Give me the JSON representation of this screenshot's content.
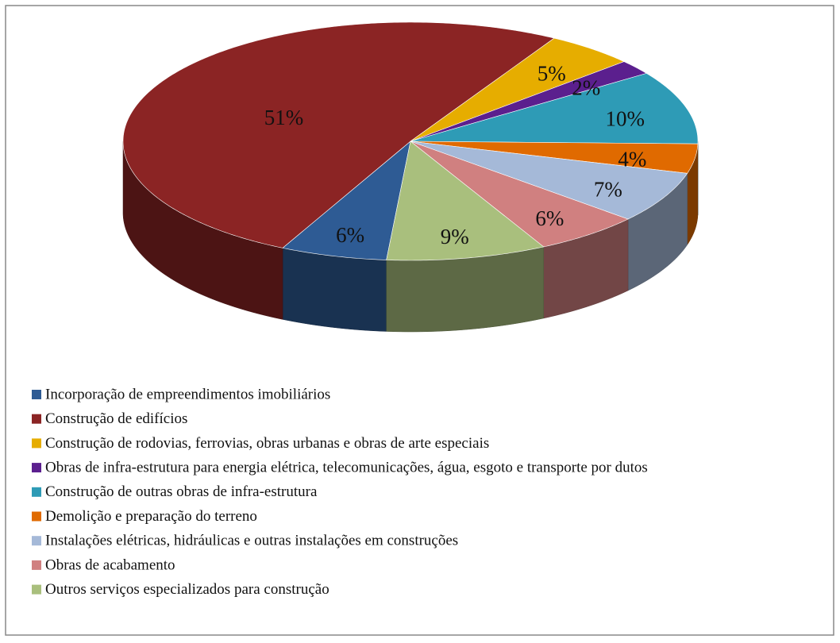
{
  "chart_data": {
    "type": "pie3d",
    "categories": [
      "Incorporação de empreendimentos imobiliários",
      "Construção de edifícios",
      "Construção de rodovias, ferrovias, obras urbanas e obras de arte especiais",
      "Obras de infra-estrutura para energia elétrica, telecomunicações, água, esgoto e transporte por dutos",
      "Construção de outras obras de infra-estrutura",
      "Demolição e preparação do terreno",
      "Instalações elétricas, hidráulicas e outras instalações em construções",
      "Obras de acabamento",
      "Outros serviços especializados para construção"
    ],
    "values": [
      6,
      51,
      5,
      2,
      10,
      4,
      7,
      6,
      9
    ],
    "value_labels": [
      "6%",
      "51%",
      "5%",
      "2%",
      "10%",
      "4%",
      "7%",
      "6%",
      "9%"
    ],
    "colors": [
      "#2e5b94",
      "#8b2424",
      "#e6ad00",
      "#5b1f8e",
      "#2e9bb6",
      "#e06a00",
      "#a5b9d8",
      "#d08080",
      "#a9bf7d"
    ],
    "legend": "bottom-left"
  }
}
